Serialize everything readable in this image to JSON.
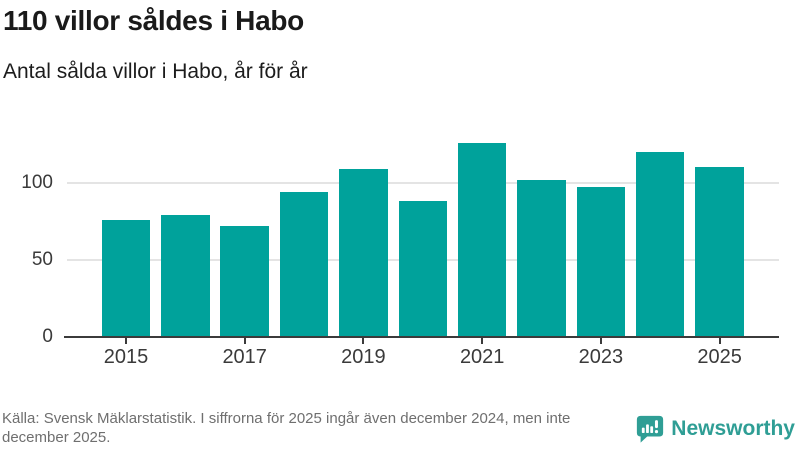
{
  "chart_data": {
    "type": "bar",
    "title": "110 villor såldes i Habo",
    "subtitle": "Antal sålda villor i Habo, år för år",
    "categories": [
      2015,
      2016,
      2017,
      2018,
      2019,
      2020,
      2021,
      2022,
      2023,
      2024,
      2025
    ],
    "values": [
      76,
      79,
      72,
      94,
      109,
      88,
      126,
      102,
      97,
      120,
      110
    ],
    "xlabel": "",
    "ylabel": "",
    "ylim": [
      0,
      140
    ],
    "yticks": [
      0,
      50,
      100
    ],
    "xticks": [
      2015,
      2017,
      2019,
      2021,
      2023,
      2025
    ],
    "grid": "horizontal",
    "legend": "none",
    "bar_color": "#00a29b"
  },
  "footer": {
    "source": "Källa: Svensk Mäklarstatistik. I siffrorna för 2025 ingår även december 2024, men inte december 2025.",
    "brand": "Newsworthy"
  },
  "colors": {
    "bar": "#00a29b",
    "brand_teal": "#2f9e95",
    "heading_text": "#1a1a1a",
    "axis_text": "#3a3a3a",
    "gridline": "#e4e4e4",
    "axis_line": "#3b3b3b",
    "muted_text": "#6f6f6f"
  }
}
